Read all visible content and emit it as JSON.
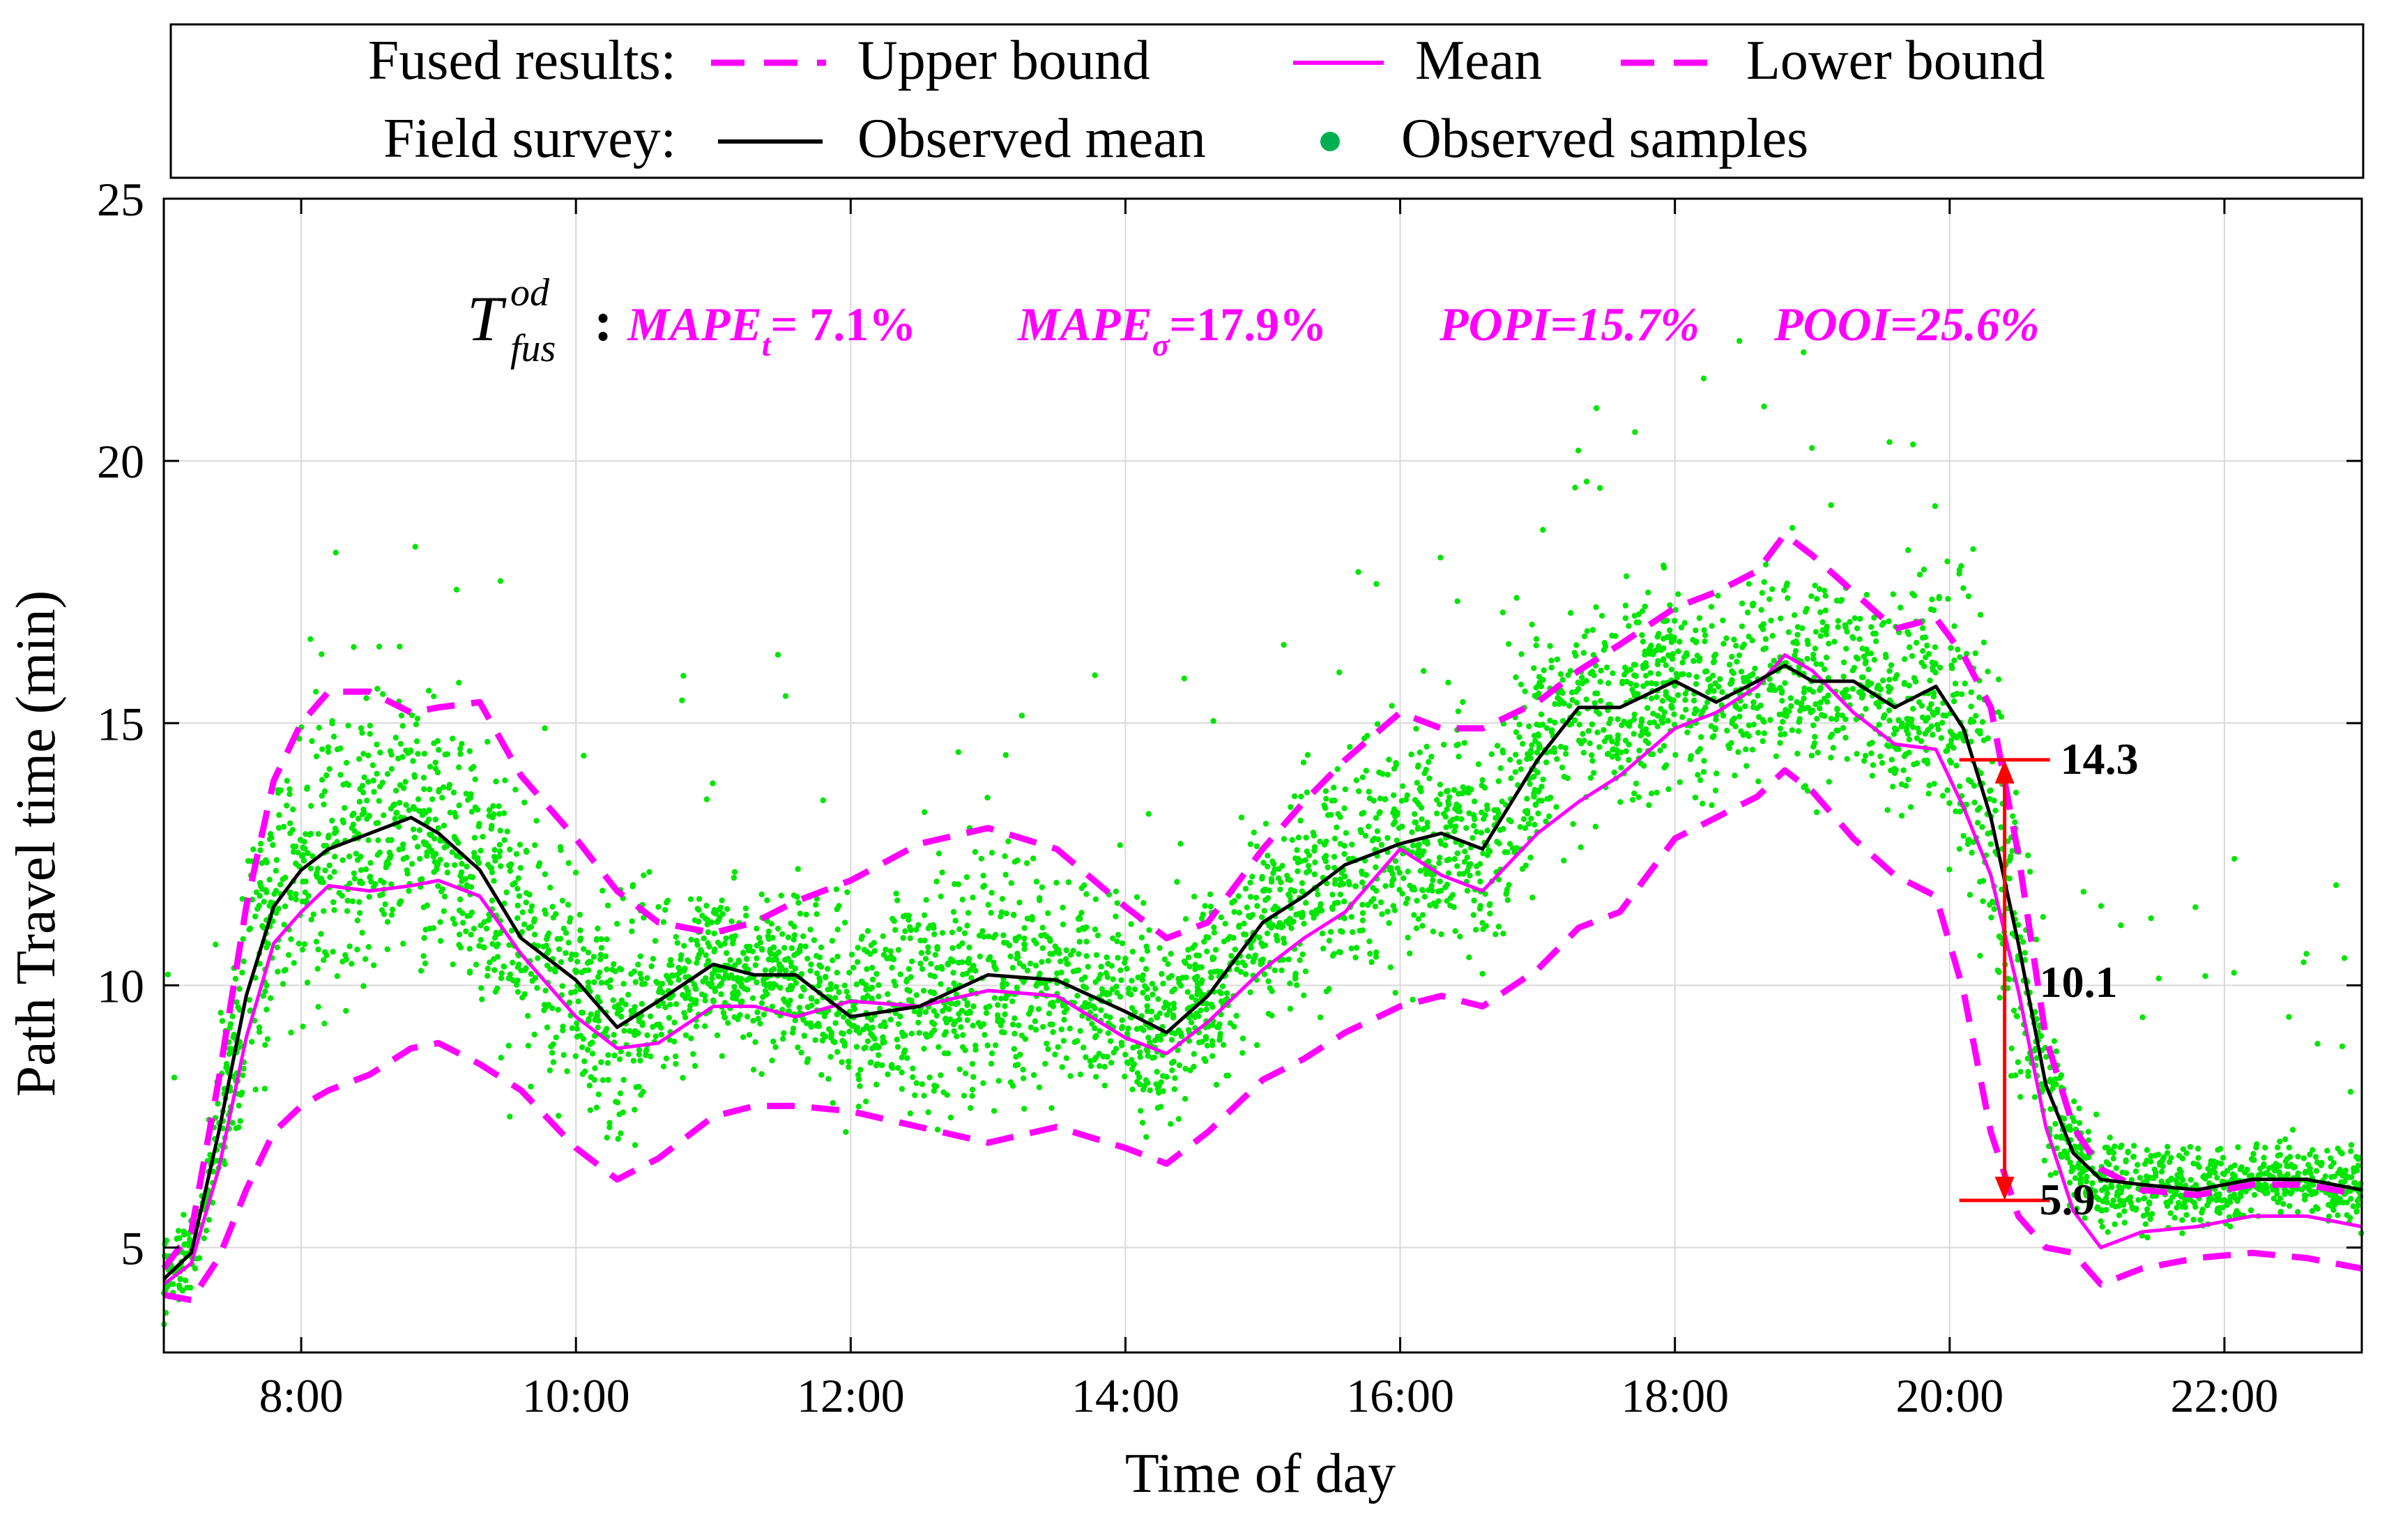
{
  "chart_data": {
    "type": "line",
    "xlabel": "Time of day",
    "ylabel": "Path Travel time (min)",
    "xlim": [
      7.0,
      23.0
    ],
    "ylim": [
      3.0,
      25.0
    ],
    "x_ticks": [
      8,
      10,
      12,
      14,
      16,
      18,
      20,
      22
    ],
    "x_tick_labels": [
      "8:00",
      "10:00",
      "12:00",
      "14:00",
      "16:00",
      "18:00",
      "20:00",
      "22:00"
    ],
    "y_ticks": [
      5,
      10,
      15,
      20,
      25
    ],
    "y_tick_labels": [
      "5",
      "10",
      "15",
      "20",
      "25"
    ],
    "grid": true,
    "legend": {
      "placement": "top",
      "row1_label": "Fused results:",
      "row2_label": "Field survey:",
      "entries": [
        "Upper bound",
        "Mean",
        "Lower bound",
        "Observed mean",
        "Observed samples"
      ]
    },
    "colors": {
      "fused": "#ff00ff",
      "observed_mean": "#000000",
      "samples": "#00e600",
      "samples_legend": "#00b050",
      "annotation": "#ff0000",
      "axis": "#000000",
      "grid": "#d9d9d9"
    },
    "metrics": {
      "symbol_main": "T",
      "symbol_sup": "od",
      "symbol_sub": "fus",
      "separator": ":",
      "mape_t_label": "MAPE",
      "mape_t_sub": "t",
      "mape_t_value": "= 7.1%",
      "mape_sigma_label": "MAPE",
      "mape_sigma_sub": "σ",
      "mape_sigma_value": "=17.9%",
      "popi_text": "POPI=15.7%",
      "pooi_text": "POOI=25.6%"
    },
    "annotations": [
      {
        "x": 20.4,
        "y": 14.3,
        "text": "14.3"
      },
      {
        "x": 20.4,
        "y": 10.1,
        "text": "10.1"
      },
      {
        "x": 20.4,
        "y": 5.9,
        "text": "5.9"
      }
    ],
    "series": [
      {
        "name": "Upper bound",
        "style": "dashed",
        "x": [
          7.0,
          7.2,
          7.4,
          7.6,
          7.8,
          8.0,
          8.2,
          8.5,
          8.8,
          9.0,
          9.3,
          9.6,
          10.0,
          10.3,
          10.6,
          11.0,
          11.3,
          11.6,
          12.0,
          12.5,
          13.0,
          13.5,
          14.0,
          14.3,
          14.6,
          15.0,
          15.3,
          15.6,
          16.0,
          16.3,
          16.6,
          17.0,
          17.3,
          17.6,
          18.0,
          18.3,
          18.6,
          18.8,
          19.0,
          19.3,
          19.6,
          19.9,
          20.1,
          20.3,
          20.5,
          20.7,
          20.9,
          21.1,
          21.4,
          21.8,
          22.2,
          22.6,
          23.0
        ],
        "y": [
          4.6,
          5.3,
          8.2,
          11.5,
          13.9,
          15.0,
          15.6,
          15.6,
          15.2,
          15.3,
          15.4,
          14.0,
          12.8,
          11.8,
          11.2,
          11.0,
          11.2,
          11.6,
          12.0,
          12.7,
          13.0,
          12.6,
          11.5,
          10.9,
          11.2,
          12.6,
          13.5,
          14.3,
          15.2,
          14.9,
          14.9,
          15.4,
          16.0,
          16.5,
          17.2,
          17.5,
          17.9,
          18.6,
          18.2,
          17.5,
          16.8,
          17.0,
          16.3,
          15.3,
          12.5,
          9.0,
          7.3,
          6.5,
          6.1,
          6.0,
          6.2,
          6.2,
          6.0
        ]
      },
      {
        "name": "Mean",
        "style": "solid",
        "x": [
          7.0,
          7.2,
          7.4,
          7.6,
          7.8,
          8.0,
          8.2,
          8.5,
          8.8,
          9.0,
          9.3,
          9.6,
          10.0,
          10.3,
          10.6,
          11.0,
          11.3,
          11.6,
          12.0,
          12.5,
          13.0,
          13.5,
          14.0,
          14.3,
          14.6,
          15.0,
          15.3,
          15.6,
          16.0,
          16.3,
          16.6,
          17.0,
          17.3,
          17.6,
          18.0,
          18.3,
          18.6,
          18.8,
          19.0,
          19.3,
          19.6,
          19.9,
          20.1,
          20.3,
          20.5,
          20.7,
          20.9,
          21.1,
          21.4,
          21.8,
          22.2,
          22.6,
          23.0
        ],
        "y": [
          4.3,
          4.7,
          6.5,
          9.0,
          10.8,
          11.4,
          11.9,
          11.8,
          11.9,
          12.0,
          11.7,
          10.6,
          9.4,
          8.8,
          8.9,
          9.6,
          9.6,
          9.4,
          9.7,
          9.6,
          9.9,
          9.8,
          9.0,
          8.7,
          9.3,
          10.3,
          10.9,
          11.4,
          12.6,
          12.1,
          11.8,
          12.9,
          13.5,
          14.0,
          14.9,
          15.2,
          15.7,
          16.3,
          16.0,
          15.2,
          14.6,
          14.5,
          13.4,
          12.1,
          9.9,
          7.3,
          5.7,
          5.0,
          5.3,
          5.4,
          5.6,
          5.6,
          5.4
        ]
      },
      {
        "name": "Lower bound",
        "style": "dashed",
        "x": [
          7.0,
          7.2,
          7.4,
          7.6,
          7.8,
          8.0,
          8.2,
          8.5,
          8.8,
          9.0,
          9.3,
          9.6,
          10.0,
          10.3,
          10.6,
          11.0,
          11.3,
          11.6,
          12.0,
          12.5,
          13.0,
          13.5,
          14.0,
          14.3,
          14.6,
          15.0,
          15.3,
          15.6,
          16.0,
          16.3,
          16.6,
          17.0,
          17.3,
          17.6,
          18.0,
          18.3,
          18.6,
          18.8,
          19.0,
          19.3,
          19.6,
          19.9,
          20.1,
          20.3,
          20.5,
          20.7,
          20.9,
          21.1,
          21.4,
          21.8,
          22.2,
          22.6,
          23.0
        ],
        "y": [
          4.1,
          4.0,
          4.8,
          6.1,
          7.2,
          7.7,
          8.0,
          8.3,
          8.8,
          8.9,
          8.5,
          8.0,
          6.9,
          6.3,
          6.7,
          7.5,
          7.7,
          7.7,
          7.6,
          7.3,
          7.0,
          7.3,
          6.9,
          6.6,
          7.2,
          8.2,
          8.6,
          9.1,
          9.6,
          9.8,
          9.6,
          10.3,
          11.1,
          11.4,
          12.8,
          13.2,
          13.6,
          14.1,
          13.7,
          12.8,
          12.1,
          11.7,
          9.9,
          7.2,
          5.6,
          5.0,
          4.9,
          4.3,
          4.6,
          4.8,
          4.9,
          4.8,
          4.6
        ]
      },
      {
        "name": "Observed mean",
        "style": "solid",
        "x": [
          7.0,
          7.2,
          7.4,
          7.6,
          7.8,
          8.0,
          8.2,
          8.5,
          8.8,
          9.0,
          9.3,
          9.6,
          10.0,
          10.3,
          10.6,
          11.0,
          11.3,
          11.6,
          12.0,
          12.5,
          13.0,
          13.5,
          14.0,
          14.3,
          14.6,
          15.0,
          15.3,
          15.6,
          16.0,
          16.3,
          16.6,
          17.0,
          17.3,
          17.6,
          18.0,
          18.3,
          18.6,
          18.8,
          19.0,
          19.3,
          19.6,
          19.9,
          20.1,
          20.3,
          20.5,
          20.7,
          20.9,
          21.1,
          21.4,
          21.8,
          22.2,
          22.6,
          23.0
        ],
        "y": [
          4.4,
          4.9,
          7.2,
          9.8,
          11.5,
          12.2,
          12.6,
          12.9,
          13.2,
          12.9,
          12.2,
          10.9,
          10.1,
          9.2,
          9.7,
          10.4,
          10.2,
          10.2,
          9.4,
          9.6,
          10.2,
          10.1,
          9.5,
          9.1,
          9.8,
          11.2,
          11.7,
          12.3,
          12.7,
          12.9,
          12.6,
          14.3,
          15.3,
          15.3,
          15.8,
          15.4,
          15.8,
          16.1,
          15.8,
          15.8,
          15.3,
          15.7,
          14.9,
          13.2,
          10.8,
          8.1,
          6.8,
          6.3,
          6.2,
          6.1,
          6.3,
          6.3,
          6.1
        ]
      }
    ],
    "samples_note": "Observed samples: scattered field survey points distributed around the observed mean"
  }
}
